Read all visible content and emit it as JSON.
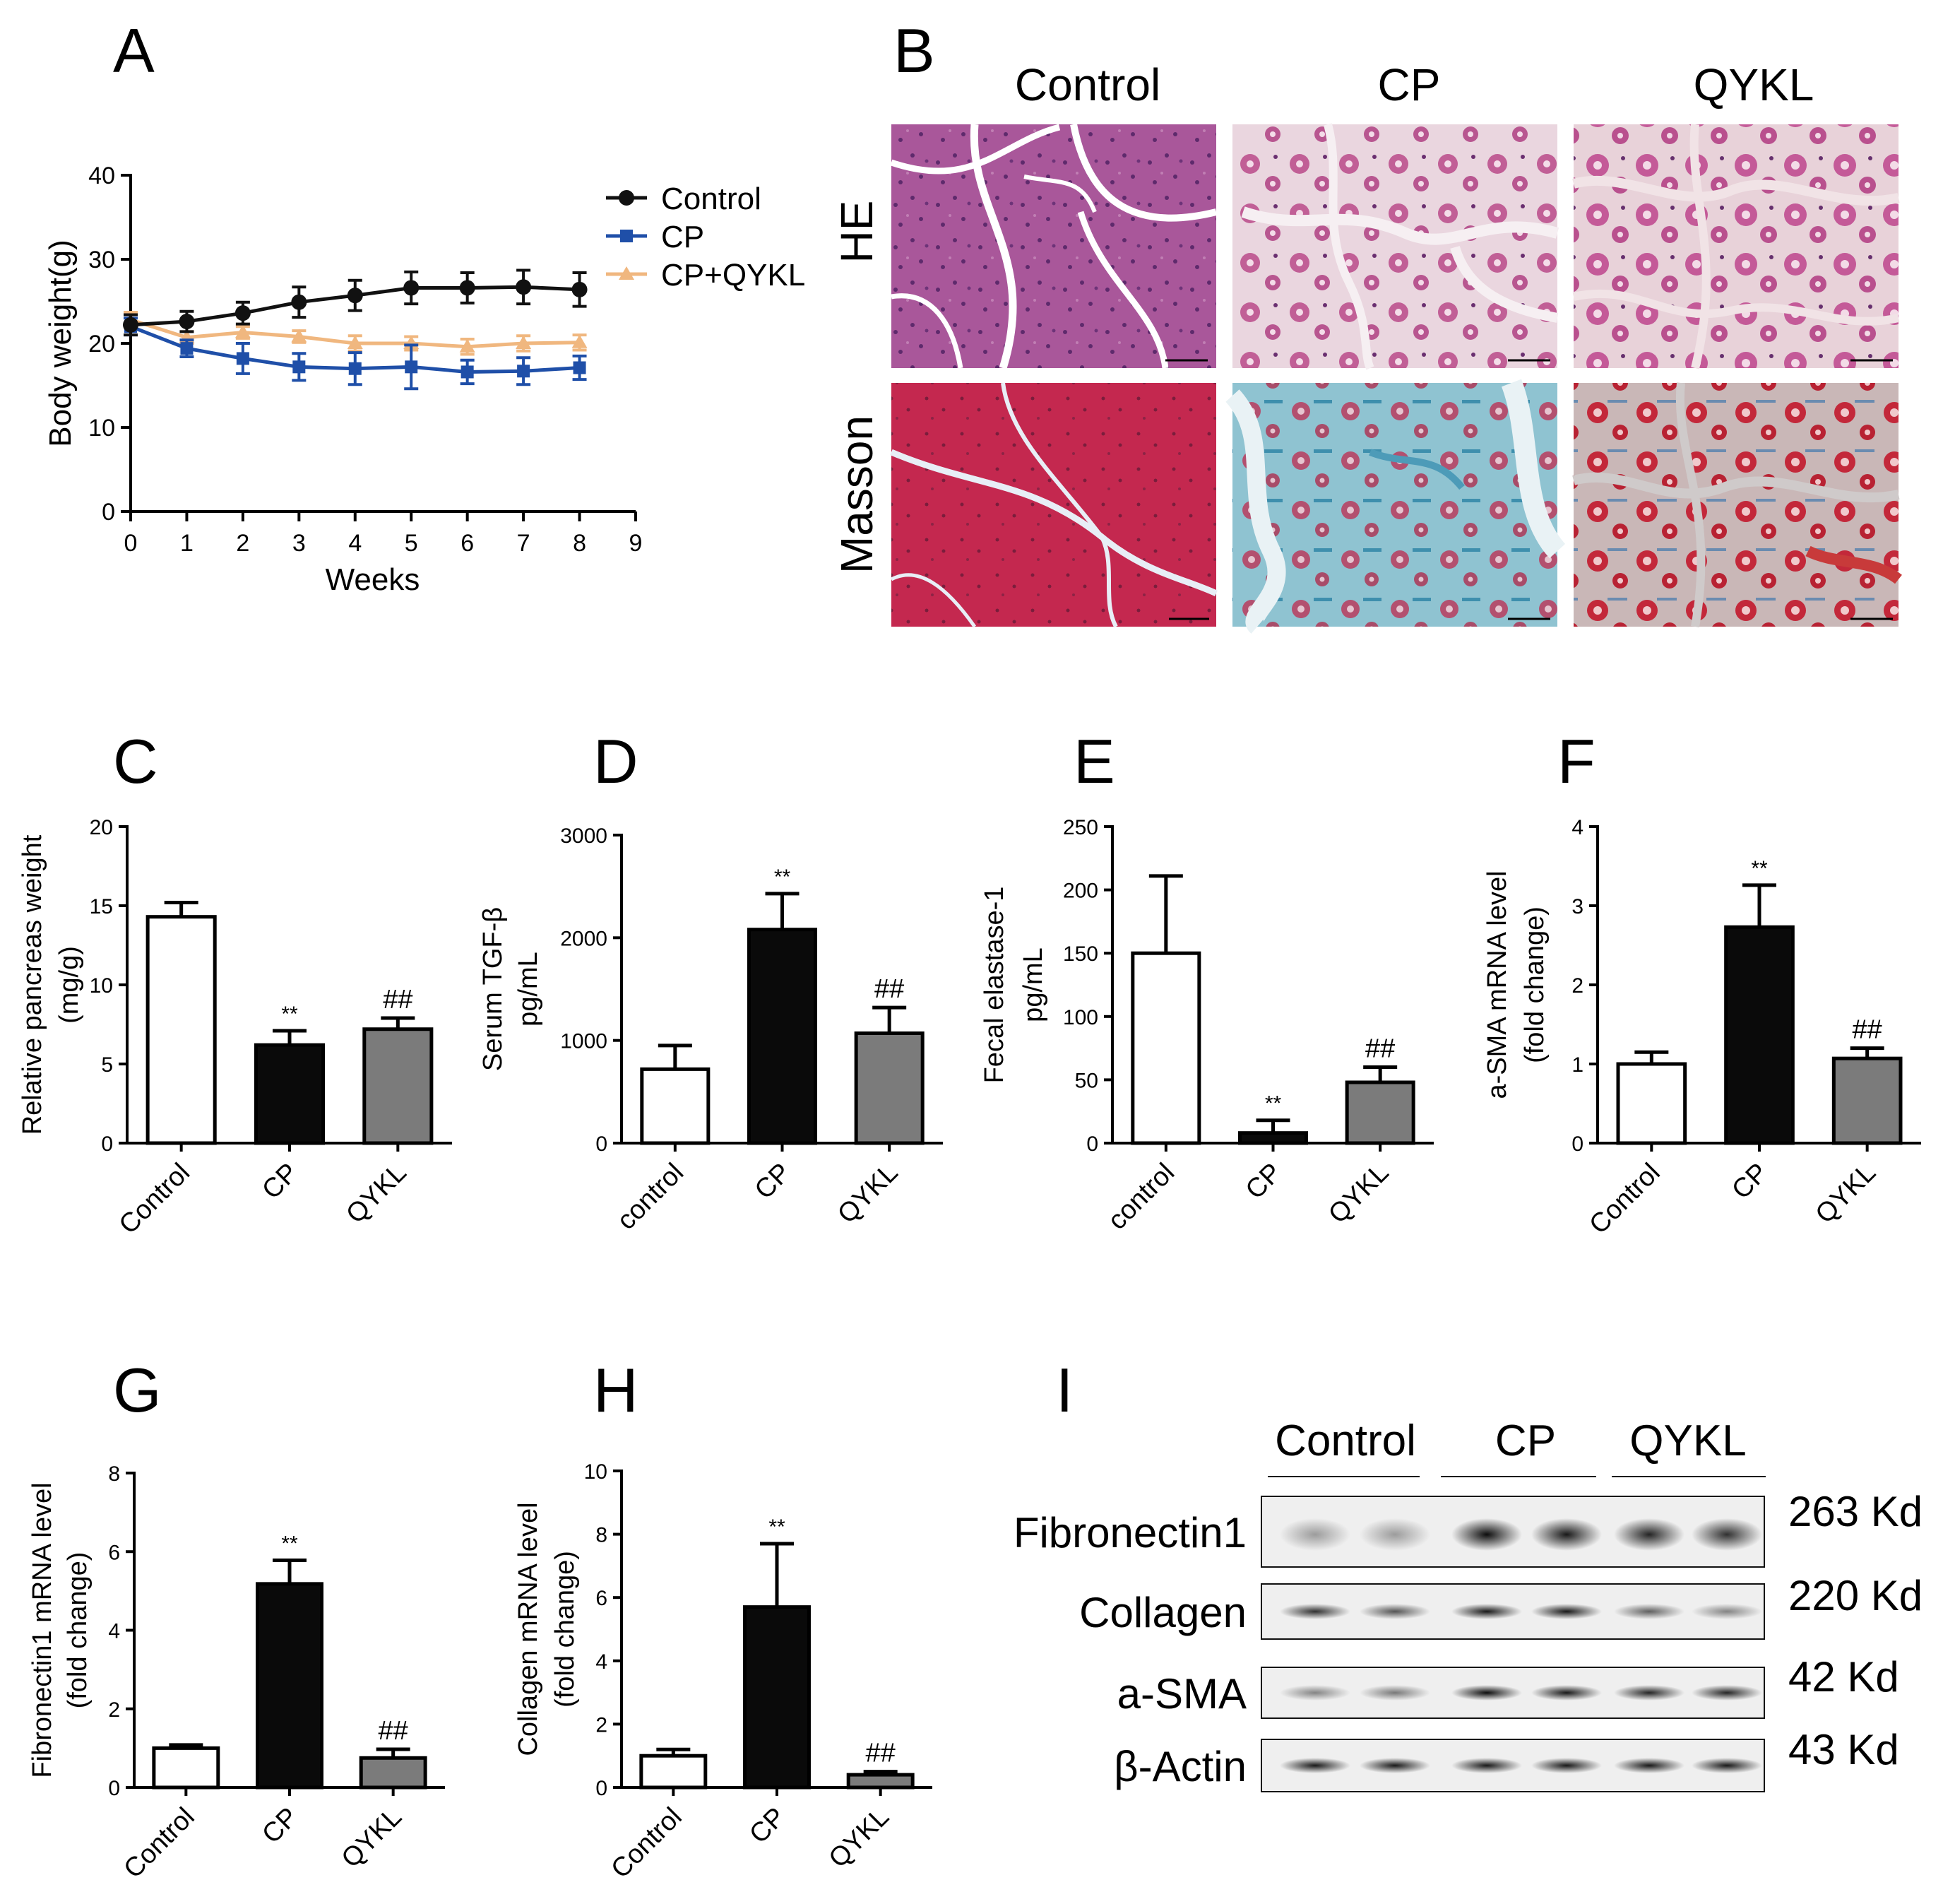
{
  "panel_letters": [
    "A",
    "B",
    "C",
    "D",
    "E",
    "F",
    "G",
    "H",
    "I"
  ],
  "chart_data": [
    {
      "panel": "A",
      "type": "line",
      "xlabel": "Weeks",
      "ylabel": "Body weight(g)",
      "xlim": [
        0,
        9
      ],
      "ylim": [
        0,
        40
      ],
      "xticks": [
        0,
        1,
        2,
        3,
        4,
        5,
        6,
        7,
        8,
        9
      ],
      "yticks": [
        0,
        10,
        20,
        30,
        40
      ],
      "x": [
        0,
        1,
        2,
        3,
        4,
        5,
        6,
        7,
        8
      ],
      "series": [
        {
          "name": "Control",
          "color": "#111111",
          "marker": "circle",
          "values": [
            22.2,
            22.6,
            23.6,
            24.9,
            25.7,
            26.6,
            26.6,
            26.7,
            26.4
          ],
          "errors": [
            1.2,
            1.2,
            1.3,
            1.8,
            1.8,
            1.9,
            1.8,
            2.0,
            2.0
          ]
        },
        {
          "name": "CP",
          "color": "#1f4fa8",
          "marker": "square",
          "values": [
            22.0,
            19.4,
            18.2,
            17.2,
            17.0,
            17.2,
            16.6,
            16.7,
            17.1
          ],
          "errors": [
            1.0,
            1.0,
            1.8,
            1.6,
            1.9,
            2.6,
            1.4,
            1.6,
            1.4
          ]
        },
        {
          "name": "CP+QYKL",
          "color": "#f0b77f",
          "marker": "triangle",
          "values": [
            22.8,
            20.7,
            21.3,
            20.8,
            20.0,
            20.0,
            19.6,
            20.0,
            20.1
          ],
          "errors": [
            0.9,
            0.7,
            0.7,
            0.7,
            0.9,
            0.8,
            0.9,
            0.9,
            0.9
          ]
        }
      ]
    },
    {
      "panel": "C",
      "type": "bar",
      "categories": [
        "Control",
        "CP",
        "QYKL"
      ],
      "values": [
        14.3,
        6.2,
        7.2
      ],
      "errors": [
        0.9,
        0.9,
        0.7
      ],
      "annotations": [
        "",
        "**",
        "##"
      ],
      "ylabel": [
        "Relative pancreas weight",
        "(mg/g)"
      ],
      "ylim": [
        0,
        20
      ],
      "yticks": [
        0,
        5,
        10,
        15,
        20
      ]
    },
    {
      "panel": "D",
      "type": "bar",
      "categories": [
        "control",
        "CP",
        "QYKL"
      ],
      "values": [
        720,
        2080,
        1070
      ],
      "errors": [
        230,
        350,
        250
      ],
      "annotations": [
        "",
        "**",
        "##"
      ],
      "ylabel": [
        "Serum TGF-β",
        "pg/mL"
      ],
      "ylim": [
        0,
        3000
      ],
      "yticks": [
        0,
        1000,
        2000,
        3000
      ]
    },
    {
      "panel": "E",
      "type": "bar",
      "categories": [
        "control",
        "CP",
        "QYKL"
      ],
      "values": [
        150,
        8,
        48
      ],
      "errors": [
        61,
        10,
        12
      ],
      "annotations": [
        "",
        "**",
        "##"
      ],
      "ylabel": [
        "Fecal elastase-1",
        "pg/mL"
      ],
      "ylim": [
        0,
        250
      ],
      "yticks": [
        0,
        50,
        100,
        150,
        200,
        250
      ]
    },
    {
      "panel": "F",
      "type": "bar",
      "categories": [
        "Control",
        "CP",
        "QYKL"
      ],
      "values": [
        1.0,
        2.73,
        1.07
      ],
      "errors": [
        0.15,
        0.53,
        0.13
      ],
      "annotations": [
        "",
        "**",
        "##"
      ],
      "ylabel": [
        "a-SMA mRNA  level",
        "(fold change)"
      ],
      "ylim": [
        0,
        4
      ],
      "yticks": [
        0,
        1,
        2,
        3,
        4
      ]
    },
    {
      "panel": "G",
      "type": "bar",
      "categories": [
        "Control",
        "CP",
        "QYKL"
      ],
      "values": [
        1.0,
        5.18,
        0.75
      ],
      "errors": [
        0.08,
        0.6,
        0.22
      ],
      "annotations": [
        "",
        "**",
        "##"
      ],
      "ylabel": [
        "Fibronectin1 mRNA  level",
        "(fold change)"
      ],
      "ylim": [
        0,
        8
      ],
      "yticks": [
        0,
        2,
        4,
        6,
        8
      ]
    },
    {
      "panel": "H",
      "type": "bar",
      "categories": [
        "Control",
        "CP",
        "QYKL"
      ],
      "values": [
        1.0,
        5.7,
        0.4
      ],
      "errors": [
        0.2,
        2.0,
        0.1
      ],
      "annotations": [
        "",
        "**",
        "##"
      ],
      "ylabel": [
        "Collagen mRNA  level",
        "(fold change)"
      ],
      "ylim": [
        0,
        10
      ],
      "yticks": [
        0,
        2,
        4,
        6,
        8,
        10
      ]
    }
  ],
  "histology": {
    "columns": [
      "Control",
      "CP",
      "QYKL"
    ],
    "rows": [
      "HE",
      "Masson"
    ]
  },
  "western_blot": {
    "groups": [
      "Control",
      "CP",
      "QYKL"
    ],
    "rows": [
      {
        "protein": "Fibronectin1",
        "weight": "263 Kd",
        "intensity": [
          0.35,
          0.35,
          0.95,
          0.9,
          0.85,
          0.8
        ]
      },
      {
        "protein": "Collagen",
        "weight": "220 Kd",
        "intensity": [
          0.8,
          0.65,
          0.9,
          0.9,
          0.6,
          0.45
        ]
      },
      {
        "protein": "a-SMA",
        "weight": "42 Kd",
        "intensity": [
          0.45,
          0.5,
          0.95,
          0.9,
          0.85,
          0.85
        ]
      },
      {
        "protein": "β-Actin",
        "weight": "43 Kd",
        "intensity": [
          0.9,
          0.9,
          0.9,
          0.9,
          0.9,
          0.9
        ]
      }
    ]
  }
}
